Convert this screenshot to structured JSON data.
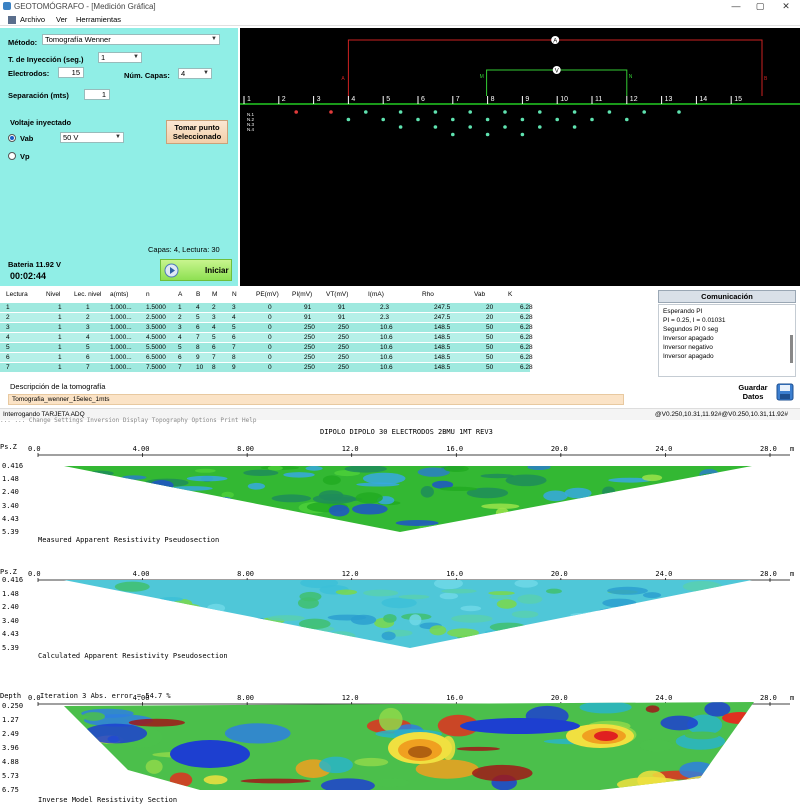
{
  "window": {
    "title": "GEOTOMÓGRAFO - [Medición Gráfica]",
    "controls": [
      "—",
      "▢",
      "✕"
    ]
  },
  "menu": {
    "items": [
      "Archivo",
      "Ver",
      "Herramientas"
    ]
  },
  "controls": {
    "metodo_label": "Método:",
    "metodo_value": "Tomografía Wenner",
    "inyeccion_label": "T. de Inyección (seg.)",
    "inyeccion_value": "1",
    "electrodos_label": "Electrodos:",
    "electrodos_value": "15",
    "capas_label": "Núm. Capas:",
    "capas_value": "4",
    "separacion_label": "Separación (mts)",
    "separacion_value": "1",
    "voltaje_label": "Voltaje inyectado",
    "vab_label": "Vab",
    "vab_value": "50 V",
    "vp_label": "Vp",
    "tomar_button": "Tomar punto Seleccionado",
    "capas_status": "Capas: 4, Lectura: 30",
    "bateria": "Bateria 11.92 V",
    "timer": "00:02:44",
    "iniciar": "Iniciar"
  },
  "graphic": {
    "electrode_labels": [
      "1",
      "2",
      "3",
      "4",
      "5",
      "6",
      "7",
      "8",
      "9",
      "10",
      "11",
      "12",
      "13",
      "14",
      "15"
    ],
    "current_electrode_labels": [
      "A",
      "B"
    ],
    "potential_electrode_labels": [
      "M",
      "N"
    ],
    "meter_current": "A",
    "meter_voltage": "V",
    "level_labels": [
      "N.1",
      "N.2",
      "N.3",
      "N.4"
    ],
    "colors": {
      "ground": "#22cc22",
      "current": "#cc2222",
      "potential": "#33cc33",
      "point": "#5fe3b0",
      "selected": "#e23b3b"
    }
  },
  "table": {
    "headers": [
      "Lectura",
      "Nivel",
      "Lec. nivel",
      "a(mts)",
      "n",
      "A",
      "B",
      "M",
      "N",
      "PE(mV)",
      "PI(mV)",
      "VT(mV)",
      "I(mA)",
      "Rho",
      "Vab",
      "K"
    ],
    "rows": [
      [
        "1",
        "1",
        "1",
        "1.000...",
        "1.5000",
        "1",
        "4",
        "2",
        "3",
        "0",
        "91",
        "91",
        "2.3",
        "247.5",
        "20",
        "6.28"
      ],
      [
        "2",
        "1",
        "2",
        "1.000...",
        "2.5000",
        "2",
        "5",
        "3",
        "4",
        "0",
        "91",
        "91",
        "2.3",
        "247.5",
        "20",
        "6.28"
      ],
      [
        "3",
        "1",
        "3",
        "1.000...",
        "3.5000",
        "3",
        "6",
        "4",
        "5",
        "0",
        "250",
        "250",
        "10.6",
        "148.5",
        "50",
        "6.28"
      ],
      [
        "4",
        "1",
        "4",
        "1.000...",
        "4.5000",
        "4",
        "7",
        "5",
        "6",
        "0",
        "250",
        "250",
        "10.6",
        "148.5",
        "50",
        "6.28"
      ],
      [
        "5",
        "1",
        "5",
        "1.000...",
        "5.5000",
        "5",
        "8",
        "6",
        "7",
        "0",
        "250",
        "250",
        "10.6",
        "148.5",
        "50",
        "6.28"
      ],
      [
        "6",
        "1",
        "6",
        "1.000...",
        "6.5000",
        "6",
        "9",
        "7",
        "8",
        "0",
        "250",
        "250",
        "10.6",
        "148.5",
        "50",
        "6.28"
      ],
      [
        "7",
        "1",
        "7",
        "1.000...",
        "7.5000",
        "7",
        "10",
        "8",
        "9",
        "0",
        "250",
        "250",
        "10.6",
        "148.5",
        "50",
        "6.28"
      ]
    ]
  },
  "descripcion": {
    "label": "Descripción de la tomografía",
    "value": "Tomografia_wenner_15elec_1mts"
  },
  "comm": {
    "header": "Comunicación",
    "lines": [
      "Esperando PI",
      "PI = 0.25, I = 0.01031",
      "Segundos PI 0 seg",
      "Inversor apagado",
      "Inversor negativo",
      "Inversor apagado"
    ]
  },
  "guardar": "Guardar Datos",
  "status": {
    "left": "Interrogando TARJETA ADQ",
    "right": "@V0.250,10.31,11.92#@V0.250,10.31,11.92#"
  },
  "inversion": {
    "menu_fragment": "... ... Change Settings  Inversion  Display  Topography Options  Print  Help",
    "title": "DIPOLO DIPOLO 30 ELECTRODOS 2BMU 1MT  REV3",
    "x_ticks": [
      "0.0",
      "4.00",
      "8.00",
      "12.0",
      "16.0",
      "20.0",
      "24.0",
      "28.0"
    ],
    "unit": "m",
    "sections": [
      {
        "axis_label": "Ps.Z",
        "depths": [
          "0.416",
          "1.48",
          "2.40",
          "3.40",
          "4.43",
          "5.39"
        ],
        "caption": "Measured Apparent Resistivity Pseudosection"
      },
      {
        "axis_label": "Ps.Z",
        "depths": [
          "0.416",
          "1.48",
          "2.40",
          "3.40",
          "4.43",
          "5.39"
        ],
        "caption": "Calculated Apparent Resistivity Pseudosection"
      },
      {
        "axis_label": "Depth",
        "header": "Iteration 3 Abs. error = 54.7 %",
        "depths": [
          "0.250",
          "1.27",
          "2.49",
          "3.96",
          "4.88",
          "5.73",
          "6.75"
        ],
        "caption": "Inverse Model Resistivity Section"
      }
    ]
  }
}
